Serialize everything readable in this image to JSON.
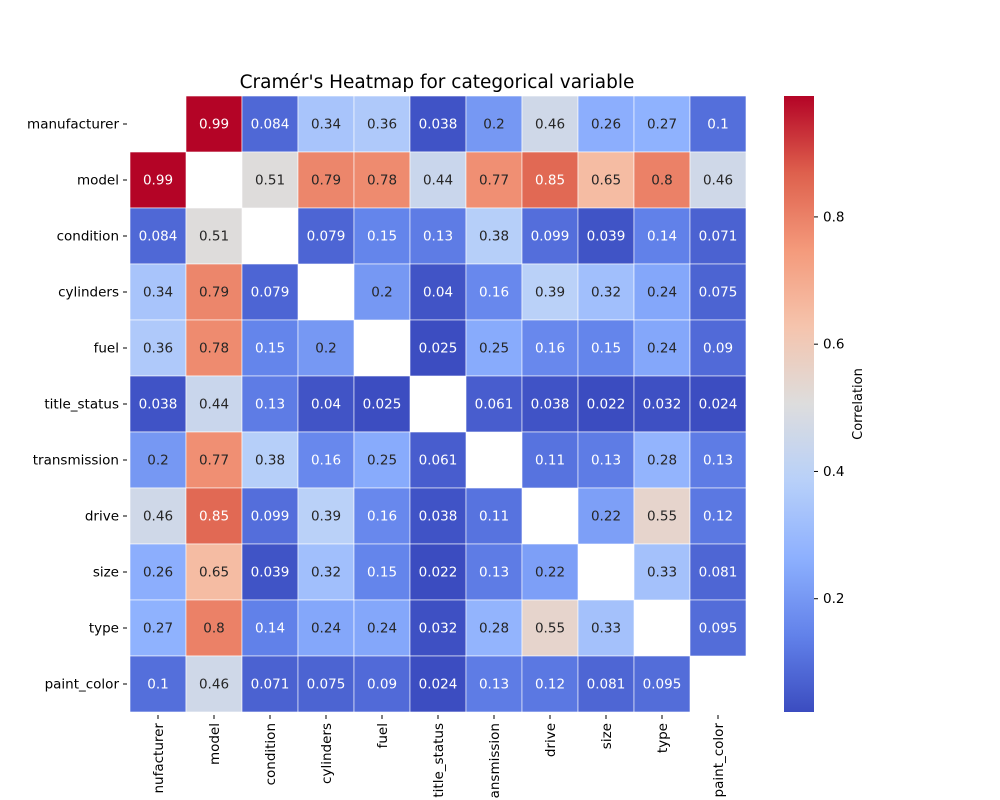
{
  "chart_data": {
    "type": "heatmap",
    "title": "Cramér's Heatmap for categorical variable",
    "xlabel": "",
    "ylabel": "",
    "variables": [
      "manufacturer",
      "model",
      "condition",
      "cylinders",
      "fuel",
      "title_status",
      "transmission",
      "drive",
      "size",
      "type",
      "paint_color"
    ],
    "x_tick_labels": [
      "nufacturer",
      "model",
      "condition",
      "cylinders",
      "fuel",
      "title_status",
      "ansmission",
      "drive",
      "size",
      "type",
      "paint_color"
    ],
    "matrix": [
      [
        null,
        0.99,
        0.084,
        0.34,
        0.36,
        0.038,
        0.2,
        0.46,
        0.26,
        0.27,
        0.1
      ],
      [
        0.99,
        null,
        0.51,
        0.79,
        0.78,
        0.44,
        0.77,
        0.85,
        0.65,
        0.8,
        0.46
      ],
      [
        0.084,
        0.51,
        null,
        0.079,
        0.15,
        0.13,
        0.38,
        0.099,
        0.039,
        0.14,
        0.071
      ],
      [
        0.34,
        0.79,
        0.079,
        null,
        0.2,
        0.04,
        0.16,
        0.39,
        0.32,
        0.24,
        0.075
      ],
      [
        0.36,
        0.78,
        0.15,
        0.2,
        null,
        0.025,
        0.25,
        0.16,
        0.15,
        0.24,
        0.09
      ],
      [
        0.038,
        0.44,
        0.13,
        0.04,
        0.025,
        null,
        0.061,
        0.038,
        0.022,
        0.032,
        0.024
      ],
      [
        0.2,
        0.77,
        0.38,
        0.16,
        0.25,
        0.061,
        null,
        0.11,
        0.13,
        0.28,
        0.13
      ],
      [
        0.46,
        0.85,
        0.099,
        0.39,
        0.16,
        0.038,
        0.11,
        null,
        0.22,
        0.55,
        0.12
      ],
      [
        0.26,
        0.65,
        0.039,
        0.32,
        0.15,
        0.022,
        0.13,
        0.22,
        null,
        0.33,
        0.081
      ],
      [
        0.27,
        0.8,
        0.14,
        0.24,
        0.24,
        0.032,
        0.28,
        0.55,
        0.33,
        null,
        0.095
      ],
      [
        0.1,
        0.46,
        0.071,
        0.075,
        0.09,
        0.024,
        0.13,
        0.12,
        0.081,
        0.095,
        null
      ]
    ],
    "colormap": "coolwarm",
    "color_range": [
      0.022,
      0.99
    ],
    "colorbar": {
      "label": "Correlation",
      "ticks": [
        0.2,
        0.4,
        0.6,
        0.8
      ]
    },
    "cell_border_color": "#ffffff",
    "text_color_light": "#ffffff",
    "text_color_dark": "#262626"
  }
}
